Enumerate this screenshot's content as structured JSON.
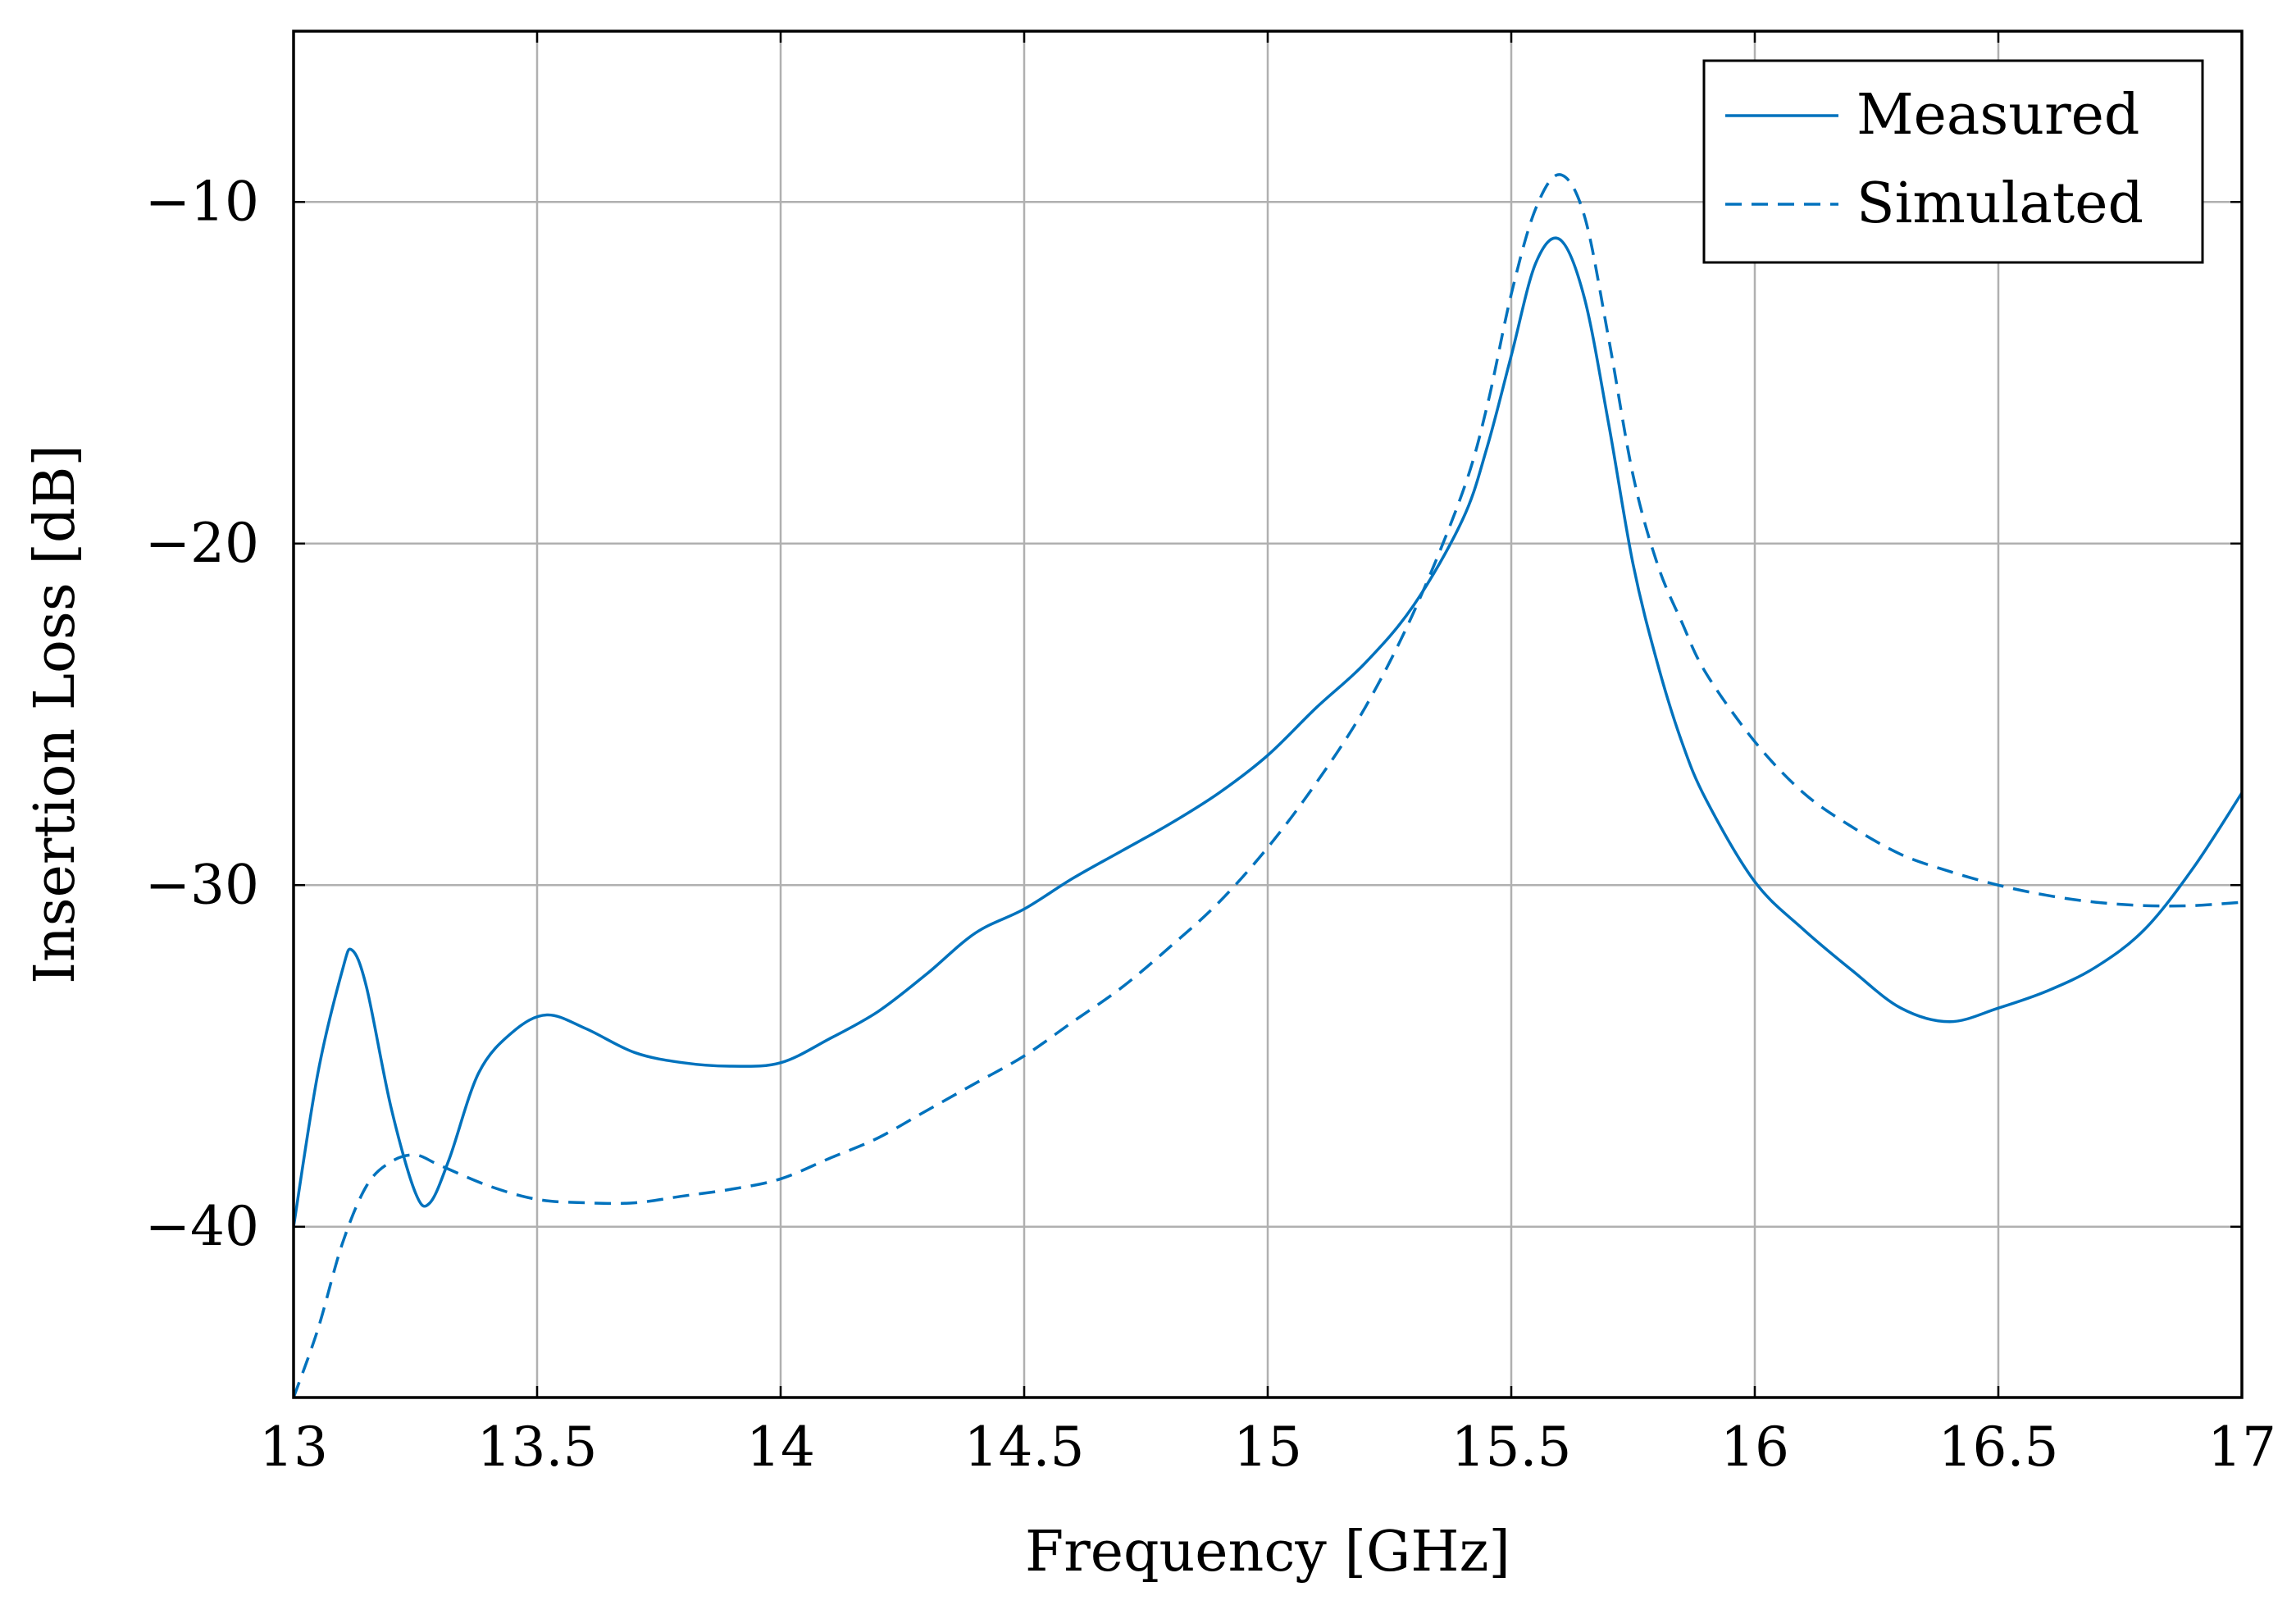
{
  "chart_data": {
    "type": "line",
    "title": "",
    "xlabel": "Frequency [GHz]",
    "ylabel": "Insertion Loss [dB]",
    "xlim": [
      13,
      17
    ],
    "ylim": [
      -45,
      -5
    ],
    "x_ticks": [
      13,
      13.5,
      14,
      14.5,
      15,
      15.5,
      16,
      16.5,
      17
    ],
    "x_tick_labels": [
      "13",
      "13.5",
      "14",
      "14.5",
      "15",
      "15.5",
      "16",
      "16.5",
      "17"
    ],
    "y_ticks": [
      -10,
      -20,
      -30,
      -40
    ],
    "y_tick_labels": [
      "−10",
      "−20",
      "−30",
      "−40"
    ],
    "grid": true,
    "legend_position": "top-right",
    "colors": {
      "series": "#0072bd",
      "grid": "#b0b0b0",
      "axis": "#000000"
    },
    "series": [
      {
        "name": "Measured",
        "style": "solid",
        "x": [
          13.0,
          13.05,
          13.1,
          13.12,
          13.15,
          13.2,
          13.25,
          13.28,
          13.32,
          13.38,
          13.45,
          13.52,
          13.6,
          13.7,
          13.8,
          13.9,
          14.0,
          14.1,
          14.2,
          14.3,
          14.4,
          14.5,
          14.6,
          14.7,
          14.8,
          14.9,
          15.0,
          15.1,
          15.2,
          15.3,
          15.4,
          15.45,
          15.5,
          15.55,
          15.6,
          15.65,
          15.7,
          15.75,
          15.8,
          15.85,
          15.9,
          16.0,
          16.1,
          16.2,
          16.3,
          16.4,
          16.5,
          16.6,
          16.7,
          16.8,
          16.9,
          17.0
        ],
        "y": [
          -40.0,
          -35.5,
          -32.5,
          -31.9,
          -33.0,
          -36.5,
          -39.0,
          -39.3,
          -38.0,
          -35.5,
          -34.3,
          -33.8,
          -34.2,
          -34.9,
          -35.2,
          -35.3,
          -35.2,
          -34.5,
          -33.7,
          -32.6,
          -31.4,
          -30.7,
          -29.8,
          -29.0,
          -28.2,
          -27.3,
          -26.2,
          -24.8,
          -23.5,
          -21.8,
          -19.3,
          -17.2,
          -14.5,
          -11.8,
          -11.1,
          -12.8,
          -16.5,
          -20.6,
          -23.5,
          -25.8,
          -27.5,
          -29.9,
          -31.3,
          -32.5,
          -33.6,
          -34.0,
          -33.6,
          -33.1,
          -32.4,
          -31.3,
          -29.5,
          -27.3
        ]
      },
      {
        "name": "Simulated",
        "style": "dashed",
        "x": [
          13.0,
          13.05,
          13.1,
          13.15,
          13.2,
          13.25,
          13.3,
          13.4,
          13.5,
          13.6,
          13.7,
          13.8,
          13.9,
          14.0,
          14.1,
          14.2,
          14.3,
          14.4,
          14.5,
          14.6,
          14.7,
          14.8,
          14.9,
          15.0,
          15.1,
          15.2,
          15.3,
          15.4,
          15.45,
          15.5,
          15.55,
          15.6,
          15.65,
          15.7,
          15.75,
          15.8,
          15.85,
          15.9,
          16.0,
          16.1,
          16.2,
          16.3,
          16.4,
          16.5,
          16.6,
          16.7,
          16.8,
          16.9,
          17.0
        ],
        "y": [
          -45.0,
          -43.0,
          -40.5,
          -38.8,
          -38.1,
          -37.9,
          -38.2,
          -38.8,
          -39.2,
          -39.3,
          -39.3,
          -39.1,
          -38.9,
          -38.6,
          -38.0,
          -37.4,
          -36.6,
          -35.8,
          -35.0,
          -34.0,
          -33.0,
          -31.8,
          -30.5,
          -28.9,
          -27.0,
          -24.8,
          -22.0,
          -18.5,
          -16.0,
          -12.7,
          -10.2,
          -9.2,
          -10.4,
          -14.0,
          -18.0,
          -20.6,
          -22.3,
          -23.8,
          -25.8,
          -27.3,
          -28.3,
          -29.1,
          -29.6,
          -30.0,
          -30.3,
          -30.5,
          -30.6,
          -30.6,
          -30.5
        ]
      }
    ]
  }
}
